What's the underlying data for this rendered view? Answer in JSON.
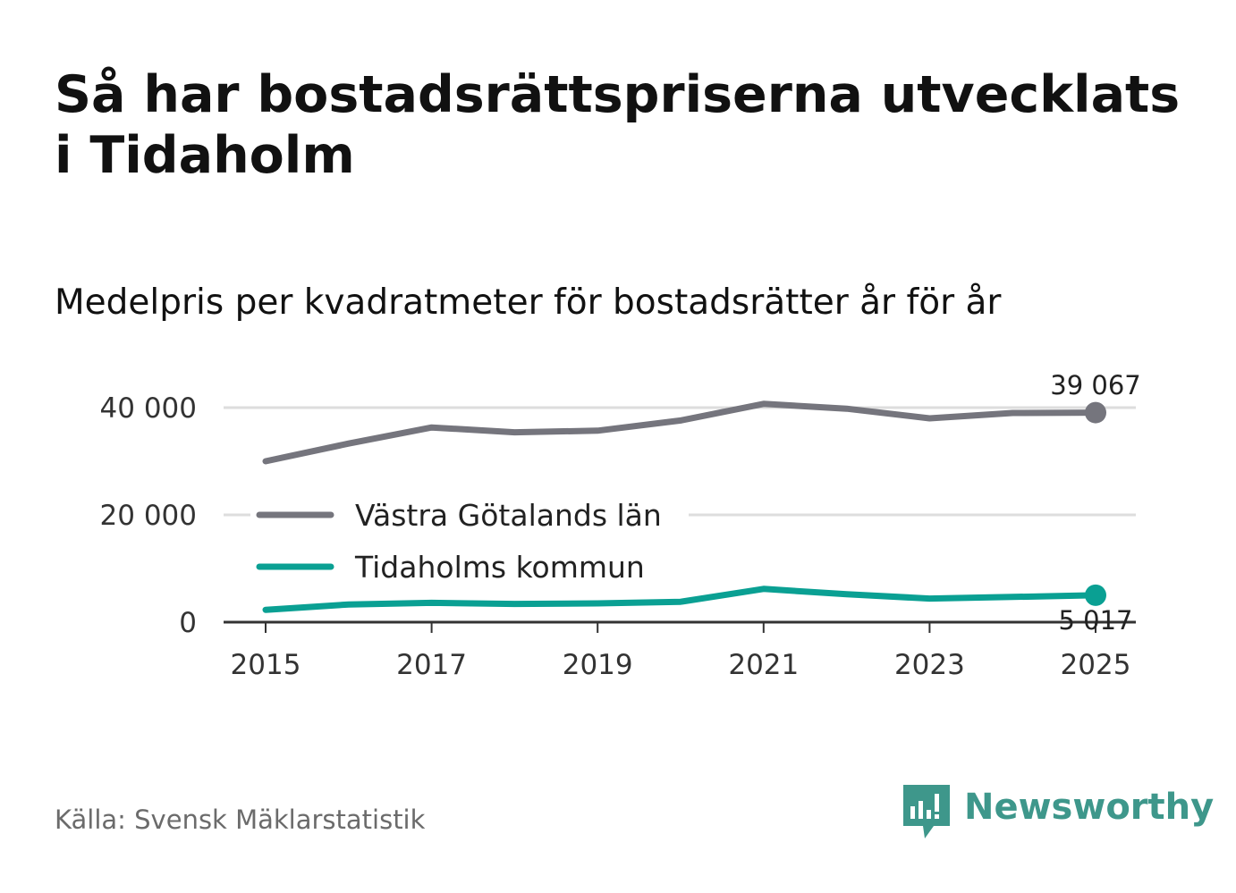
{
  "title": "Så har bostadsrättspriserna utvecklats i Tidaholm",
  "subtitle": "Medelpris per kvadratmeter för bostadsrätter år för år",
  "source": "Källa: Svensk Mäklarstatistik",
  "brand": "Newsworthy",
  "colors": {
    "gray_series": "#75757d",
    "teal_series": "#0aa093",
    "brand": "#3e978b",
    "grid": "#dddddd"
  },
  "chart_data": {
    "type": "line",
    "x": [
      2015,
      2016,
      2017,
      2018,
      2019,
      2020,
      2021,
      2022,
      2023,
      2024,
      2025
    ],
    "xticks": [
      2015,
      2017,
      2019,
      2021,
      2023,
      2025
    ],
    "xtick_labels": [
      "2015",
      "2017",
      "2019",
      "2021",
      "2023",
      "2025"
    ],
    "yticks": [
      0,
      20000,
      40000
    ],
    "ytick_labels": [
      "0",
      "20 000",
      "40 000"
    ],
    "xlim": [
      2015,
      2025
    ],
    "ylim": [
      0,
      40000
    ],
    "series": [
      {
        "name": "Västra Götalands län",
        "color": "#75757d",
        "values": [
          30000,
          33300,
          36300,
          35400,
          35700,
          37600,
          40700,
          39800,
          38000,
          39000,
          39067
        ],
        "end_label": "39 067"
      },
      {
        "name": "Tidaholms kommun",
        "color": "#0aa093",
        "values": [
          2300,
          3300,
          3600,
          3400,
          3500,
          3800,
          6200,
          5200,
          4400,
          4700,
          5017
        ],
        "end_label": "5 017"
      }
    ],
    "legend_position": "center-left"
  }
}
